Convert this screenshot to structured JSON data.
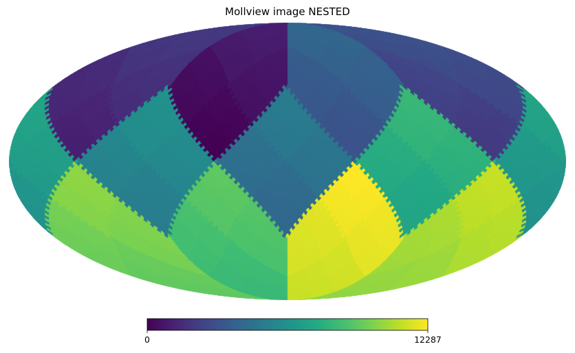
{
  "chart_data": {
    "type": "heatmap",
    "projection": "mollweide",
    "title": "Mollview image NESTED",
    "colormap": "viridis",
    "colorbar": {
      "min": 0,
      "max": 12287,
      "tick_labels": [
        "0",
        "12287"
      ],
      "placement": "bottom"
    },
    "base_pixels": [
      {
        "id": 0,
        "region": "north",
        "value_min": 0,
        "value_max": 1023
      },
      {
        "id": 1,
        "region": "north",
        "value_min": 1024,
        "value_max": 2047
      },
      {
        "id": 2,
        "region": "north",
        "value_min": 2048,
        "value_max": 3071
      },
      {
        "id": 3,
        "region": "north",
        "value_min": 3072,
        "value_max": 4095
      },
      {
        "id": 4,
        "region": "equator",
        "value_min": 4096,
        "value_max": 5119
      },
      {
        "id": 5,
        "region": "equator",
        "value_min": 5120,
        "value_max": 6143
      },
      {
        "id": 6,
        "region": "equator",
        "value_min": 6144,
        "value_max": 7167
      },
      {
        "id": 7,
        "region": "equator",
        "value_min": 7168,
        "value_max": 8191
      },
      {
        "id": 8,
        "region": "south",
        "value_min": 8192,
        "value_max": 9215
      },
      {
        "id": 9,
        "region": "south",
        "value_min": 9216,
        "value_max": 10239
      },
      {
        "id": 10,
        "region": "south",
        "value_min": 10240,
        "value_max": 11263
      },
      {
        "id": 11,
        "region": "south",
        "value_min": 11264,
        "value_max": 12287
      }
    ],
    "grid": false,
    "legend": "none"
  }
}
